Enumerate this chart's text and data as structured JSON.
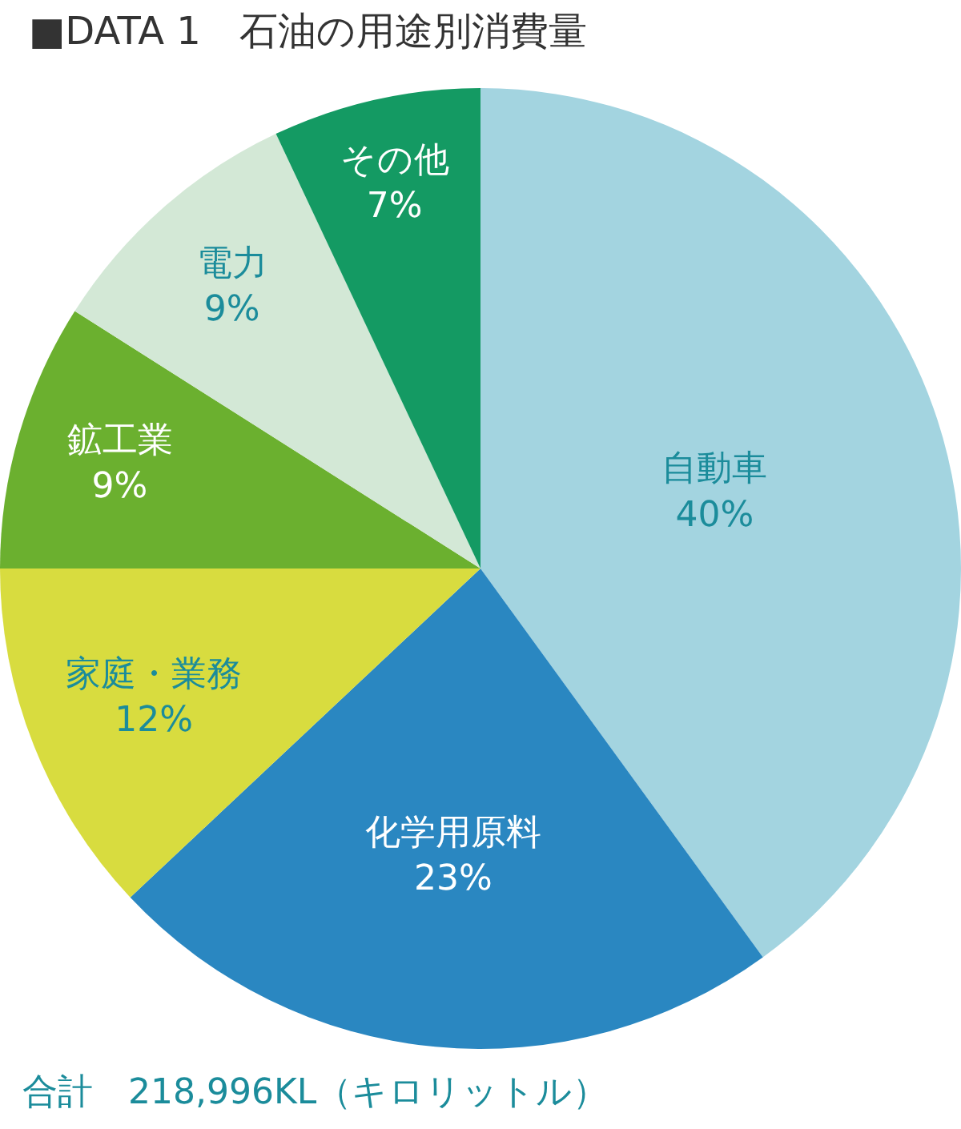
{
  "chart_data": {
    "type": "pie",
    "title": "■DATA 1　石油の用途別消費量",
    "categories": [
      "自動車",
      "化学用原料",
      "家庭・業務",
      "鉱工業",
      "電力",
      "その他"
    ],
    "values": [
      40,
      23,
      12,
      9,
      9,
      7
    ],
    "value_labels": [
      "40%",
      "23%",
      "12%",
      "9%",
      "9%",
      "7%"
    ],
    "colors": [
      "#a3d4e0",
      "#2a87c1",
      "#d8dc3f",
      "#6bb02f",
      "#d3e8d6",
      "#149a63"
    ],
    "annotations": [
      "合計　218,996KL（キロリットル）"
    ]
  }
}
